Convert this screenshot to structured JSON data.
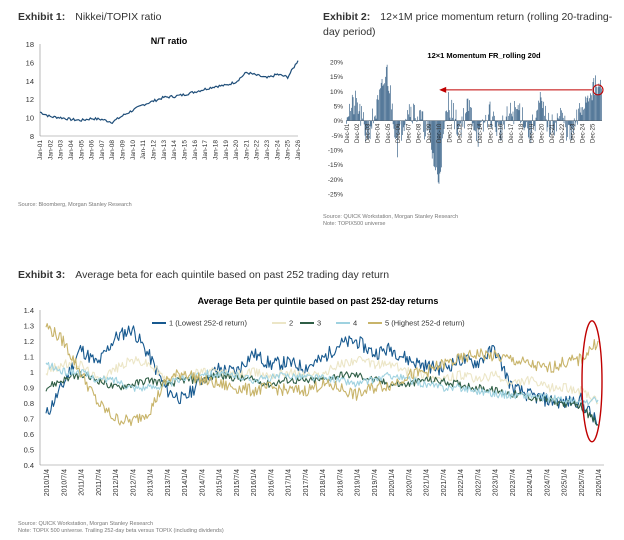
{
  "exhibits": [
    {
      "label": "Exhibit 1:",
      "title": "Nikkei/TOPIX ratio",
      "source": "Source: Bloomberg, Morgan Stanley Research",
      "note": ""
    },
    {
      "label": "Exhibit 2:",
      "title": "12×1M price momentum return (rolling 20-trading-day period)",
      "source": "Source: QUICK Workstation, Morgan Stanley Research",
      "note": "Note: TOPIX500 universe"
    },
    {
      "label": "Exhibit 3:",
      "title": "Average beta for each quintile based on past 252 trading day return",
      "source": "Source: QUICK Workstation, Morgan Stanley Research",
      "note": "Note: TOPIX 500 universe. Trailing 252-day beta versus TOPIX (including dividends)"
    }
  ],
  "chart_data": [
    {
      "type": "line",
      "title": "N/T ratio",
      "x": [
        "Jan-01",
        "Jan-02",
        "Jan-03",
        "Jan-04",
        "Jan-05",
        "Jan-06",
        "Jan-07",
        "Jan-08",
        "Jan-09",
        "Jan-10",
        "Jan-11",
        "Jan-12",
        "Jan-13",
        "Jan-14",
        "Jan-15",
        "Jan-16",
        "Jan-17",
        "Jan-18",
        "Jan-19",
        "Jan-20",
        "Jan-21",
        "Jan-22",
        "Jan-23",
        "Jan-24",
        "Jan-25",
        "Jan-26"
      ],
      "series": [
        {
          "values": [
            10.6,
            10.1,
            10.0,
            9.8,
            9.7,
            9.9,
            9.8,
            9.5,
            10.2,
            10.8,
            11.4,
            11.8,
            12.2,
            12.3,
            12.5,
            12.8,
            13.1,
            13.4,
            13.5,
            13.9,
            14.9,
            14.6,
            14.3,
            14.7,
            14.4,
            16.2
          ],
          "color": "#1f4e79"
        }
      ],
      "yticks": [
        "8",
        "10",
        "12",
        "14",
        "16",
        "18"
      ],
      "ylim": [
        8,
        18
      ],
      "xlabel": "",
      "ylabel": ""
    },
    {
      "type": "bar",
      "title": "12×1 Momentum FR_rolling 20d",
      "categories": [
        "Dec-01",
        "Dec-02",
        "Dec-03",
        "Dec-04",
        "Dec-05",
        "Dec-06",
        "Dec-07",
        "Dec-08",
        "Dec-09",
        "Dec-10",
        "Dec-11",
        "Dec-12",
        "Dec-13",
        "Dec-14",
        "Dec-15",
        "Dec-16",
        "Dec-17",
        "Dec-18",
        "Dec-19",
        "Dec-20",
        "Dec-21",
        "Dec-22",
        "Dec-23",
        "Dec-24",
        "Dec-25"
      ],
      "values": [
        3,
        6,
        -5,
        4,
        17,
        -8,
        5,
        2,
        -4,
        -21,
        7,
        -3,
        5,
        -6,
        3,
        -4,
        2,
        4,
        -5,
        6,
        -3,
        2,
        -6,
        4,
        11
      ],
      "yticks": [
        "20%",
        "15%",
        "10%",
        "5%",
        "0%",
        "-5%",
        "-10%",
        "-15%",
        "-20%",
        "-25%"
      ],
      "ylim": [
        -25,
        20
      ],
      "color": "#1f4e79",
      "annotation": {
        "type": "arrow-and-circle",
        "color": "#c00000"
      }
    },
    {
      "type": "line",
      "title": "Average Beta per quintile based on past 252-day returns",
      "x": [
        "2010/1/4",
        "2010/7/4",
        "2011/1/4",
        "2011/7/4",
        "2012/1/4",
        "2012/7/4",
        "2013/1/4",
        "2013/7/4",
        "2014/1/4",
        "2014/7/4",
        "2015/1/4",
        "2015/7/4",
        "2016/1/4",
        "2016/7/4",
        "2017/1/4",
        "2017/7/4",
        "2018/1/4",
        "2018/7/4",
        "2019/1/4",
        "2019/7/4",
        "2020/1/4",
        "2020/7/4",
        "2021/1/4",
        "2021/7/4",
        "2022/1/4",
        "2022/7/4",
        "2023/1/4",
        "2023/7/4",
        "2024/1/4",
        "2024/7/4",
        "2025/1/4",
        "2025/7/4",
        "2026/1/4"
      ],
      "series": [
        {
          "name": "1 (Lowest 252-d return)",
          "color": "#17598f",
          "values": [
            0.72,
            0.92,
            1.15,
            1.05,
            1.22,
            1.28,
            1.1,
            0.88,
            0.82,
            0.95,
            1.02,
            1.0,
            1.12,
            1.05,
            1.06,
            1.03,
            1.08,
            1.18,
            1.2,
            1.12,
            1.15,
            1.08,
            1.04,
            1.02,
            1.08,
            1.06,
            1.15,
            0.9,
            0.85,
            0.82,
            0.8,
            0.82,
            0.66
          ]
        },
        {
          "name": "2",
          "color": "#ece6c7",
          "values": [
            1.0,
            1.05,
            1.05,
            0.95,
            1.02,
            1.08,
            1.05,
            0.95,
            0.98,
            1.0,
            1.0,
            0.98,
            1.0,
            0.98,
            1.0,
            0.98,
            0.98,
            1.05,
            1.08,
            1.05,
            1.05,
            1.0,
            0.98,
            0.95,
            0.98,
            0.95,
            0.98,
            0.92,
            0.95,
            0.9,
            0.9,
            0.88,
            0.8
          ]
        },
        {
          "name": "3",
          "color": "#2f5e46",
          "values": [
            0.9,
            0.95,
            0.98,
            0.95,
            0.9,
            0.92,
            0.95,
            0.92,
            0.95,
            0.95,
            0.98,
            0.96,
            0.95,
            0.92,
            0.95,
            0.94,
            0.95,
            0.98,
            0.98,
            0.95,
            0.92,
            0.92,
            0.95,
            0.94,
            0.92,
            0.9,
            0.88,
            0.86,
            0.84,
            0.82,
            0.8,
            0.78,
            0.66
          ]
        },
        {
          "name": "4",
          "color": "#9fd2e0",
          "values": [
            1.05,
            1.0,
            1.0,
            0.95,
            0.95,
            0.9,
            0.9,
            0.92,
            0.96,
            1.0,
            0.98,
            0.98,
            0.95,
            0.96,
            0.98,
            0.97,
            0.96,
            0.95,
            0.92,
            0.95,
            0.98,
            0.95,
            0.92,
            0.9,
            0.9,
            0.88,
            0.86,
            0.85,
            0.85,
            0.83,
            0.82,
            0.8,
            0.82
          ]
        },
        {
          "name": "5 (Highest 252-d return)",
          "color": "#c8b46a",
          "values": [
            1.3,
            1.2,
            1.0,
            0.8,
            0.7,
            0.68,
            0.75,
            0.95,
            1.0,
            0.95,
            0.92,
            0.9,
            0.88,
            0.9,
            0.88,
            0.88,
            0.92,
            0.9,
            0.85,
            0.9,
            0.92,
            0.98,
            1.0,
            1.05,
            1.08,
            1.12,
            1.1,
            1.08,
            1.05,
            1.02,
            1.06,
            1.08,
            1.2
          ]
        }
      ],
      "yticks": [
        "1.4",
        "1.3",
        "1.2",
        "1.1",
        "1",
        "0.9",
        "0.8",
        "0.7",
        "0.6",
        "0.5",
        "0.4"
      ],
      "ylim": [
        0.4,
        1.4
      ],
      "legend": "top",
      "annotation": {
        "type": "ellipse",
        "color": "#c00000"
      },
      "xlabel": "",
      "ylabel": ""
    }
  ]
}
